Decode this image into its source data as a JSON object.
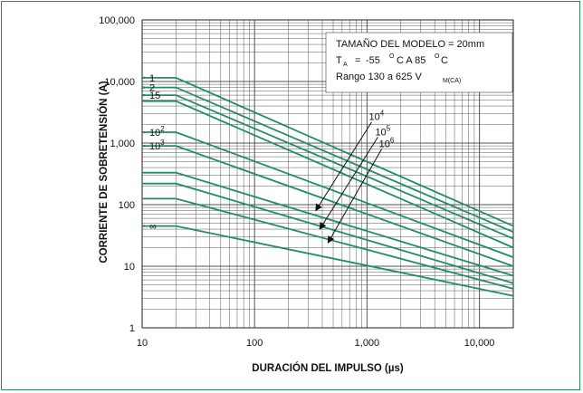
{
  "colors": {
    "curve": "#1f8f5f",
    "grid": "#555555",
    "frame": "#2e8a5a",
    "text": "#111111"
  },
  "chart_data": {
    "type": "line",
    "title": "",
    "xlabel": "DURACIÓN DEL IMPULSO (µs)",
    "ylabel": "CORRIENTE DE SOBRETENSIÓN (A)",
    "x_scale": "log",
    "y_scale": "log",
    "xlim": [
      10,
      20000
    ],
    "ylim": [
      1,
      100000
    ],
    "grid": true,
    "x_ticks": [
      {
        "value": 10,
        "label": "10"
      },
      {
        "value": 100,
        "label": "100"
      },
      {
        "value": 1000,
        "label": "1,000"
      },
      {
        "value": 10000,
        "label": "10,000"
      }
    ],
    "y_ticks": [
      {
        "value": 1,
        "label": "1"
      },
      {
        "value": 10,
        "label": "10"
      },
      {
        "value": 100,
        "label": "100"
      },
      {
        "value": 1000,
        "label": "1,000"
      },
      {
        "value": 10000,
        "label": "10,000"
      },
      {
        "value": 100000,
        "label": "100,000"
      }
    ],
    "series": [
      {
        "name": "1",
        "x": [
          10,
          20,
          20000
        ],
        "y": [
          11500,
          11500,
          45
        ]
      },
      {
        "name": "2",
        "x": [
          10,
          20,
          20000
        ],
        "y": [
          8000,
          8000,
          36
        ]
      },
      {
        "name": "15",
        "x": [
          10,
          20,
          20000
        ],
        "y": [
          6000,
          6000,
          28
        ]
      },
      {
        "name": "",
        "x": [
          10,
          20,
          20000
        ],
        "y": [
          4800,
          4800,
          20
        ]
      },
      {
        "name": "10 2",
        "x": [
          10,
          20,
          20000
        ],
        "y": [
          1500,
          1500,
          14
        ]
      },
      {
        "name": "10 3",
        "x": [
          10,
          20,
          20000
        ],
        "y": [
          900,
          900,
          10
        ]
      },
      {
        "name": "",
        "x": [
          10,
          20,
          20000
        ],
        "y": [
          330,
          330,
          7
        ]
      },
      {
        "name": "",
        "x": [
          10,
          20,
          20000
        ],
        "y": [
          220,
          220,
          5.3
        ]
      },
      {
        "name": "",
        "x": [
          10,
          20,
          20000
        ],
        "y": [
          125,
          125,
          4.3
        ]
      },
      {
        "name": "∞",
        "x": [
          10,
          20,
          20000
        ],
        "y": [
          45,
          45,
          3.3
        ]
      }
    ],
    "annotations": {
      "box_lines": [
        "TAMAÑO DEL MODELO = 20mm",
        "-55",
        "C A 85",
        "C",
        "Rango 130 a 625 V"
      ],
      "box_symbols": {
        "t": "T",
        "t_sub": "A",
        "eq": "=",
        "deg": "O",
        "v_sub": "M(CA)"
      },
      "arrows": [
        {
          "label": "10",
          "exp": "4",
          "from": [
            1100,
            2200
          ],
          "to": [
            350,
            80
          ]
        },
        {
          "label": "10",
          "exp": "5",
          "from": [
            1250,
            1250
          ],
          "to": [
            380,
            40
          ]
        },
        {
          "label": "10",
          "exp": "6",
          "from": [
            1350,
            800
          ],
          "to": [
            450,
            24
          ]
        }
      ]
    }
  }
}
